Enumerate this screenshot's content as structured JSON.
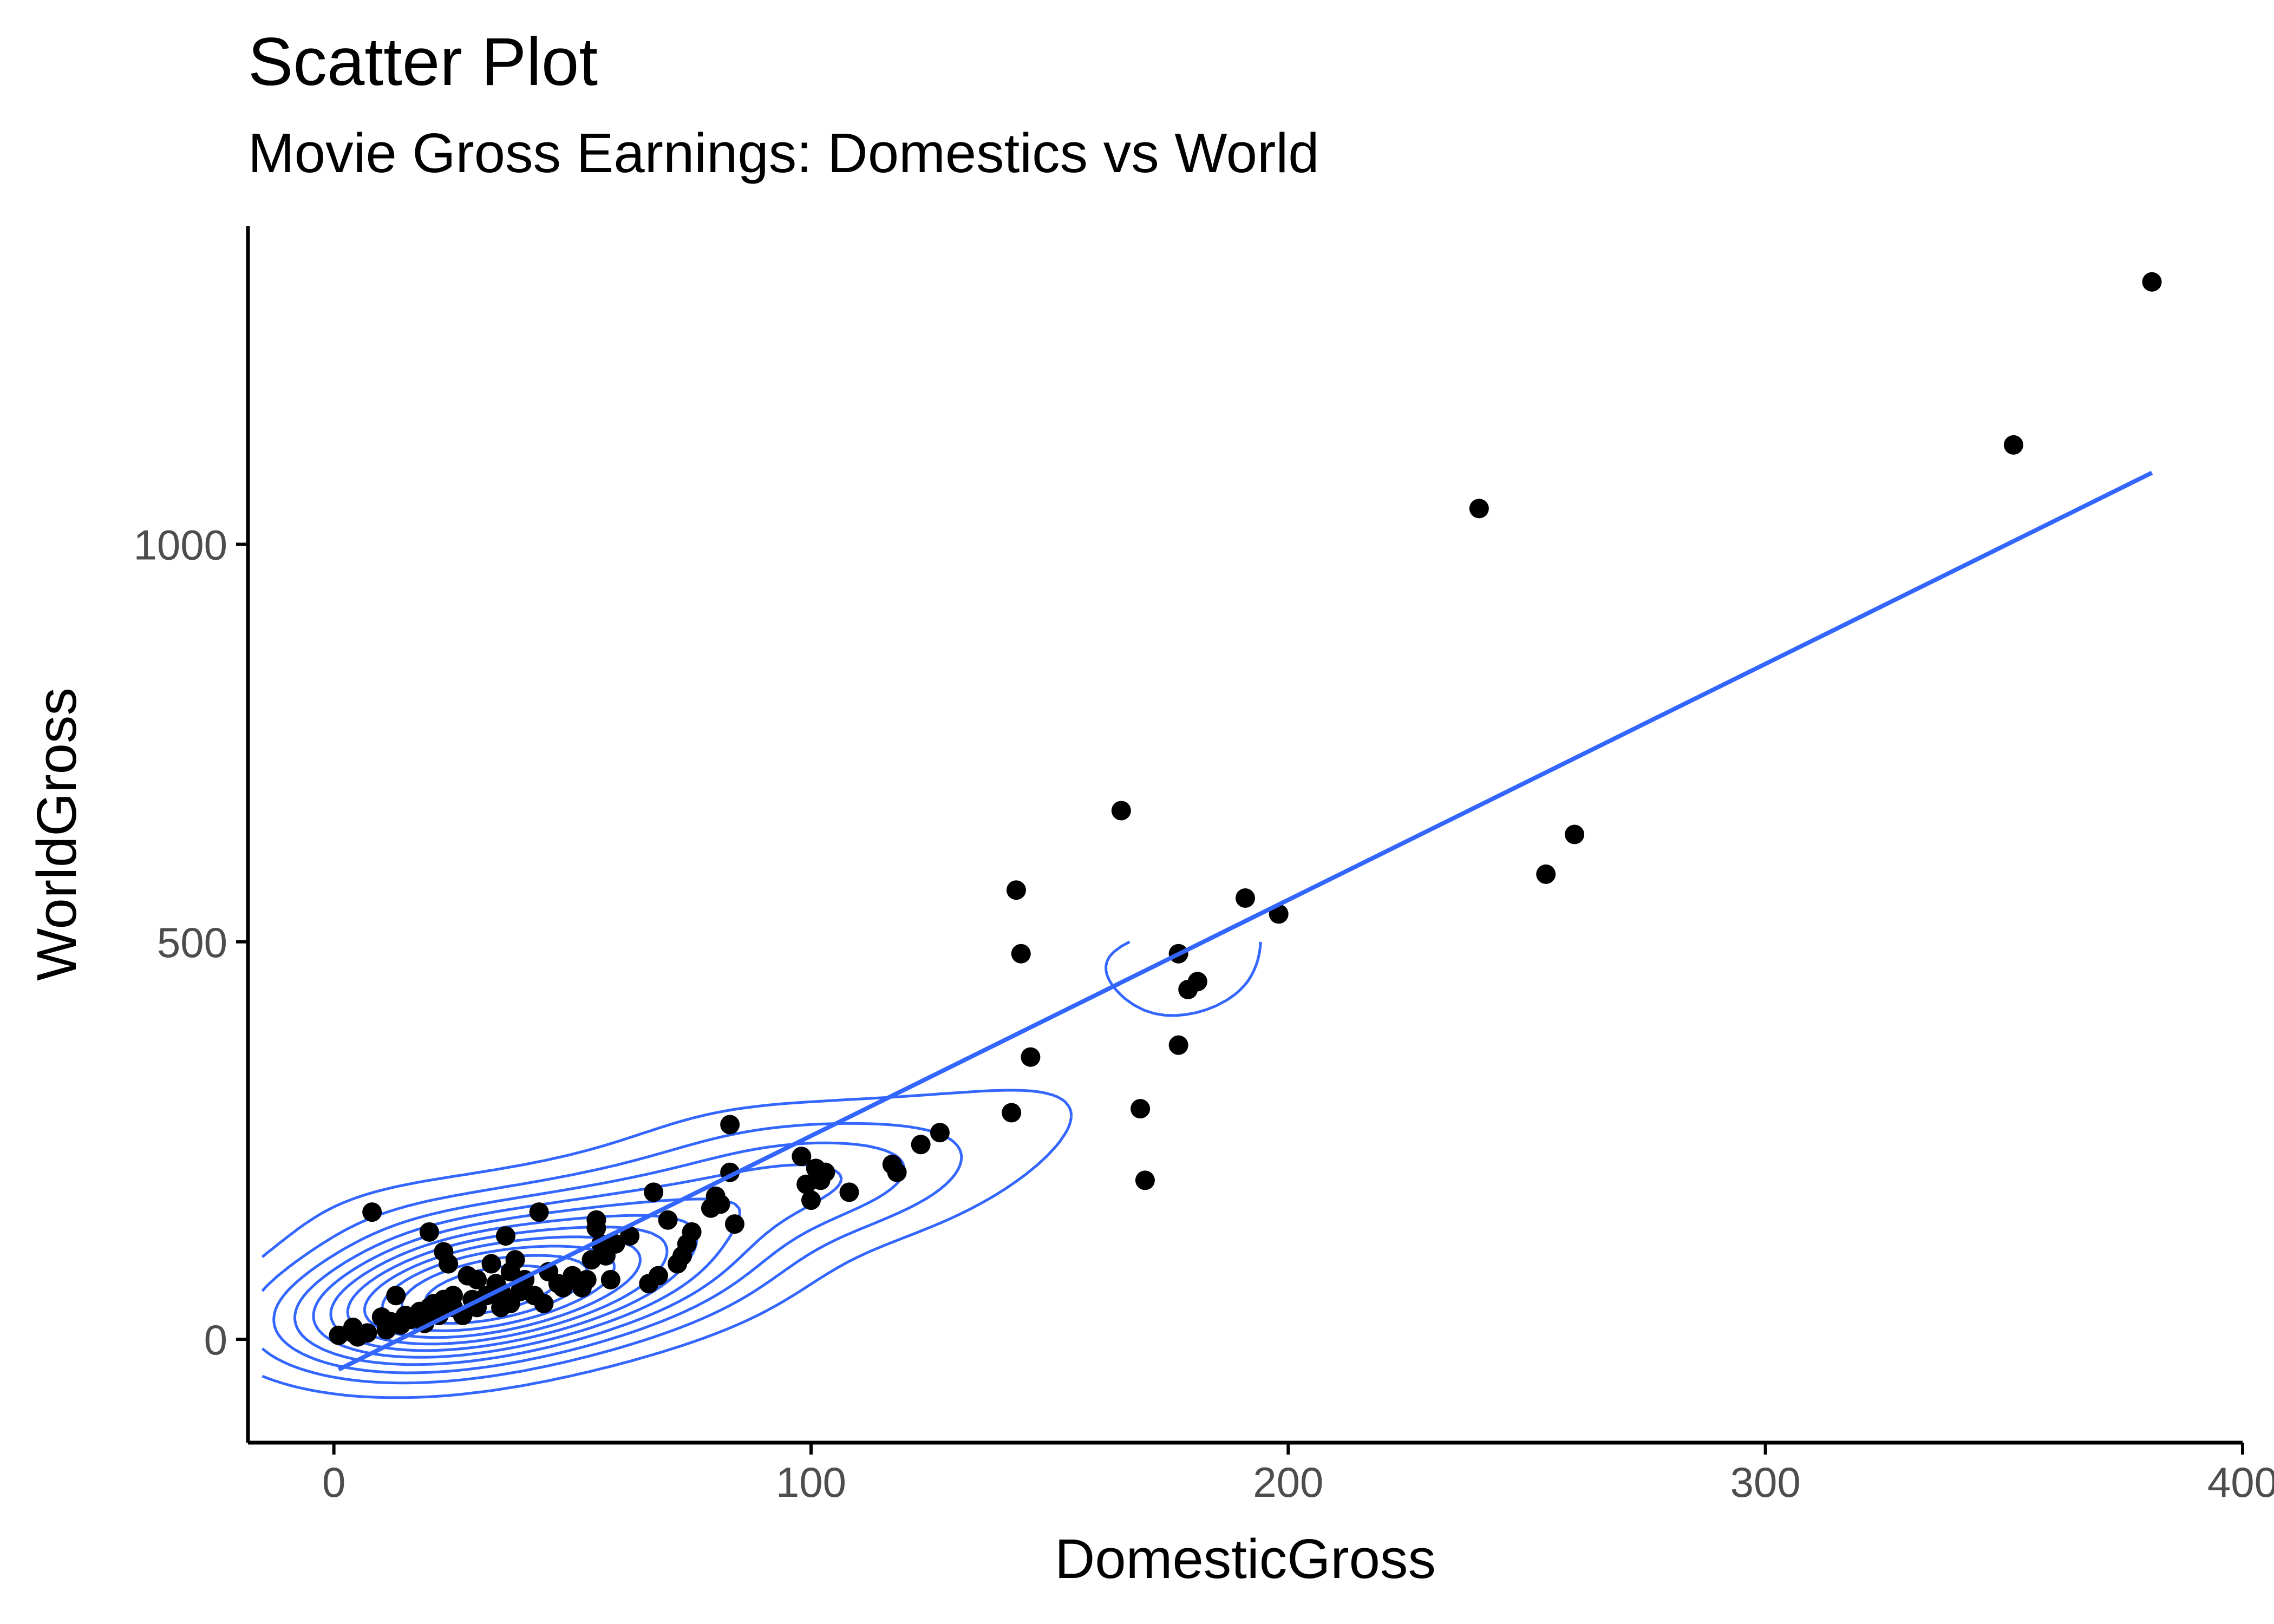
{
  "chart_data": {
    "type": "scatter",
    "title": "Scatter Plot",
    "subtitle": "Movie Gross Earnings: Domestics vs World",
    "xlabel": "DomesticGross",
    "ylabel": "WorldGross",
    "xlim": [
      -18,
      400
    ],
    "ylim": [
      -130,
      1400
    ],
    "x_ticks": [
      0,
      100,
      200,
      300,
      400
    ],
    "y_ticks": [
      0,
      500,
      1000
    ],
    "grid": false,
    "legend": "none",
    "point_color": "#000000",
    "line_color": "#3366FF",
    "points": [
      [
        1,
        5
      ],
      [
        4,
        8
      ],
      [
        4,
        15
      ],
      [
        5,
        3
      ],
      [
        7,
        8
      ],
      [
        8,
        160
      ],
      [
        10,
        28
      ],
      [
        11,
        12
      ],
      [
        12,
        22
      ],
      [
        13,
        55
      ],
      [
        14,
        18
      ],
      [
        15,
        30
      ],
      [
        16,
        25
      ],
      [
        18,
        35
      ],
      [
        19,
        20
      ],
      [
        20,
        135
      ],
      [
        20,
        40
      ],
      [
        21,
        45
      ],
      [
        22,
        30
      ],
      [
        23,
        110
      ],
      [
        23,
        50
      ],
      [
        24,
        95
      ],
      [
        25,
        40
      ],
      [
        25,
        55
      ],
      [
        27,
        30
      ],
      [
        28,
        80
      ],
      [
        29,
        50
      ],
      [
        30,
        75
      ],
      [
        30,
        40
      ],
      [
        32,
        55
      ],
      [
        33,
        95
      ],
      [
        34,
        70
      ],
      [
        35,
        40
      ],
      [
        35,
        60
      ],
      [
        36,
        130
      ],
      [
        37,
        85
      ],
      [
        37,
        45
      ],
      [
        38,
        100
      ],
      [
        39,
        60
      ],
      [
        40,
        75
      ],
      [
        42,
        55
      ],
      [
        43,
        160
      ],
      [
        44,
        45
      ],
      [
        45,
        85
      ],
      [
        47,
        70
      ],
      [
        48,
        65
      ],
      [
        50,
        80
      ],
      [
        52,
        65
      ],
      [
        53,
        75
      ],
      [
        54,
        100
      ],
      [
        55,
        140
      ],
      [
        55,
        150
      ],
      [
        56,
        120
      ],
      [
        57,
        105
      ],
      [
        58,
        75
      ],
      [
        59,
        120
      ],
      [
        62,
        130
      ],
      [
        66,
        70
      ],
      [
        67,
        185
      ],
      [
        68,
        80
      ],
      [
        70,
        150
      ],
      [
        72,
        95
      ],
      [
        73,
        105
      ],
      [
        74,
        120
      ],
      [
        75,
        135
      ],
      [
        79,
        165
      ],
      [
        80,
        180
      ],
      [
        81,
        170
      ],
      [
        83,
        270
      ],
      [
        83,
        210
      ],
      [
        84,
        145
      ],
      [
        98,
        230
      ],
      [
        99,
        195
      ],
      [
        100,
        175
      ],
      [
        101,
        215
      ],
      [
        102,
        200
      ],
      [
        103,
        210
      ],
      [
        108,
        185
      ],
      [
        117,
        220
      ],
      [
        118,
        210
      ],
      [
        123,
        245
      ],
      [
        127,
        260
      ],
      [
        142,
        285
      ],
      [
        143,
        565
      ],
      [
        144,
        485
      ],
      [
        146,
        355
      ],
      [
        165,
        665
      ],
      [
        169,
        290
      ],
      [
        170,
        200
      ],
      [
        177,
        370
      ],
      [
        177,
        485
      ],
      [
        179,
        440
      ],
      [
        181,
        450
      ],
      [
        191,
        555
      ],
      [
        198,
        535
      ],
      [
        240,
        1045
      ],
      [
        254,
        585
      ],
      [
        260,
        635
      ],
      [
        352,
        1125
      ],
      [
        381,
        1330
      ]
    ],
    "fit_line": {
      "x": [
        1,
        381
      ],
      "y": [
        -38,
        1090
      ]
    },
    "density_contours": true
  }
}
